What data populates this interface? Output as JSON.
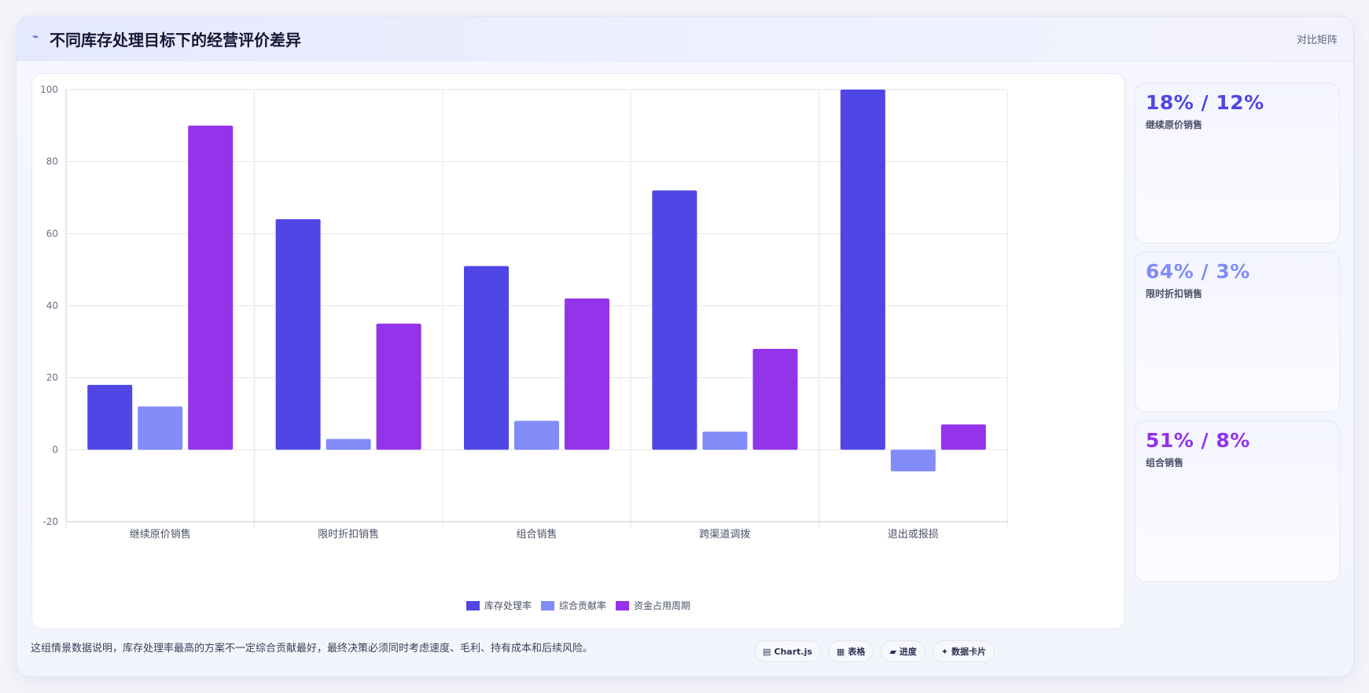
{
  "header": {
    "icon": "pulse-icon",
    "title": "不同库存处理目标下的经营评价差异",
    "mode_label": "对比矩阵"
  },
  "chart_data": {
    "type": "bar",
    "categories": [
      "继续原价销售",
      "限时折扣销售",
      "组合销售",
      "跨渠道调拨",
      "退出或报损"
    ],
    "series": [
      {
        "name": "库存处理率",
        "color": "#4f46e5",
        "values": [
          18,
          64,
          51,
          72,
          100
        ]
      },
      {
        "name": "综合贡献率",
        "color": "#818cf8",
        "values": [
          12,
          3,
          8,
          5,
          -6
        ]
      },
      {
        "name": "资金占用周期",
        "color": "#9333ea",
        "values": [
          90,
          35,
          42,
          28,
          7
        ]
      }
    ],
    "ylim": [
      -20,
      100
    ],
    "yticks": [
      100,
      80,
      60,
      40,
      20,
      0,
      -20
    ],
    "grid": true,
    "legend": "bottom"
  },
  "kpis": [
    {
      "value": "18% / 12%",
      "label": "继续原价销售",
      "color": "#4f46e5"
    },
    {
      "value": "64% / 3%",
      "label": "限时折扣销售",
      "color": "#818cf8"
    },
    {
      "value": "51% / 8%",
      "label": "组合销售",
      "color": "#9333ea"
    }
  ],
  "footer": {
    "note": "这组情景数据说明，库存处理率最高的方案不一定综合贡献最好，最终决策必须同时考虑速度、毛利、持有成本和后续风险。",
    "chips": [
      {
        "icon": "chart-icon",
        "glyph": "▤",
        "label": "Chart.js"
      },
      {
        "icon": "table-icon",
        "glyph": "▦",
        "label": "表格"
      },
      {
        "icon": "progress-icon",
        "glyph": "▰",
        "label": "进度"
      },
      {
        "icon": "sparkle-icon",
        "glyph": "✦",
        "label": "数据卡片"
      }
    ]
  }
}
